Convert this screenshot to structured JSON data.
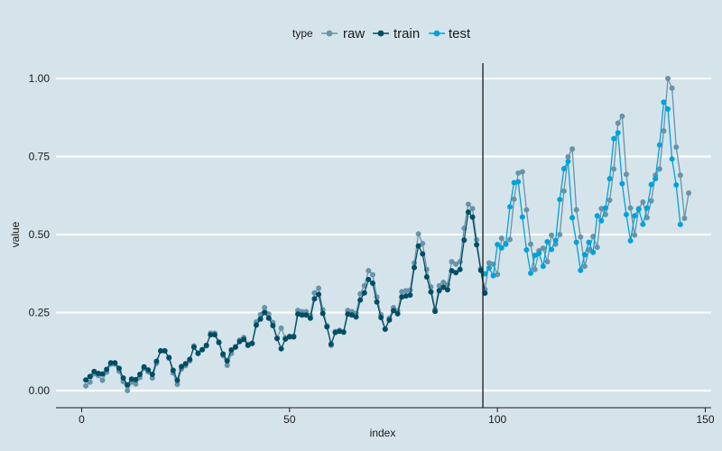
{
  "colors": {
    "background": "#d5e4eb",
    "grid": "#ffffff",
    "axis": "#1a1a1a",
    "raw": "#6794a7",
    "train": "#014d64",
    "test": "#01a2d9"
  },
  "chart_data": {
    "type": "line",
    "xlabel": "index",
    "ylabel": "value",
    "xlim": [
      1,
      144
    ],
    "ylim": [
      0,
      1
    ],
    "x_ticks": [
      0,
      50,
      100,
      150
    ],
    "x_tick_labels": [
      "0",
      "50",
      "100",
      "150"
    ],
    "y_ticks": [
      0,
      0.25,
      0.5,
      0.75,
      1
    ],
    "y_tick_labels": [
      "0.00",
      "0.25",
      "0.50",
      "0.75",
      "1.00"
    ],
    "split_index": 96.5,
    "legend": {
      "title": "type",
      "position": "top",
      "entries": [
        "raw",
        "train",
        "test"
      ]
    },
    "raw_values": [
      0.015,
      0.027,
      0.054,
      0.048,
      0.033,
      0.059,
      0.085,
      0.085,
      0.062,
      0.029,
      0.0,
      0.027,
      0.021,
      0.042,
      0.071,
      0.06,
      0.04,
      0.087,
      0.128,
      0.128,
      0.104,
      0.056,
      0.02,
      0.069,
      0.08,
      0.095,
      0.143,
      0.118,
      0.131,
      0.143,
      0.184,
      0.184,
      0.156,
      0.112,
      0.081,
      0.119,
      0.141,
      0.162,
      0.17,
      0.149,
      0.151,
      0.22,
      0.243,
      0.266,
      0.245,
      0.218,
      0.168,
      0.2,
      0.169,
      0.174,
      0.174,
      0.257,
      0.253,
      0.253,
      0.241,
      0.313,
      0.328,
      0.259,
      0.208,
      0.145,
      0.189,
      0.193,
      0.188,
      0.257,
      0.253,
      0.247,
      0.31,
      0.336,
      0.384,
      0.371,
      0.3,
      0.243,
      0.197,
      0.232,
      0.266,
      0.255,
      0.317,
      0.32,
      0.322,
      0.409,
      0.502,
      0.471,
      0.388,
      0.332,
      0.259,
      0.336,
      0.347,
      0.34,
      0.413,
      0.405,
      0.413,
      0.52,
      0.597,
      0.583,
      0.483,
      0.39,
      0.324,
      0.409,
      0.405,
      0.372,
      0.488,
      0.471,
      0.484,
      0.613,
      0.697,
      0.701,
      0.579,
      0.469,
      0.388,
      0.448,
      0.456,
      0.413,
      0.498,
      0.469,
      0.5,
      0.639,
      0.749,
      0.774,
      0.579,
      0.492,
      0.398,
      0.45,
      0.494,
      0.459,
      0.583,
      0.564,
      0.61,
      0.71,
      0.857,
      0.879,
      0.693,
      0.585,
      0.498,
      0.583,
      0.604,
      0.554,
      0.608,
      0.69,
      0.71,
      0.832,
      1.0,
      0.969,
      0.78,
      0.69,
      0.552,
      0.633
    ],
    "train_values": [
      0.034,
      0.045,
      0.061,
      0.055,
      0.053,
      0.068,
      0.089,
      0.089,
      0.071,
      0.04,
      0.018,
      0.037,
      0.035,
      0.052,
      0.076,
      0.066,
      0.052,
      0.094,
      0.127,
      0.127,
      0.106,
      0.065,
      0.033,
      0.077,
      0.086,
      0.1,
      0.139,
      0.12,
      0.131,
      0.145,
      0.179,
      0.179,
      0.154,
      0.117,
      0.095,
      0.13,
      0.139,
      0.157,
      0.164,
      0.145,
      0.151,
      0.21,
      0.229,
      0.25,
      0.232,
      0.208,
      0.167,
      0.134,
      0.165,
      0.172,
      0.172,
      0.245,
      0.242,
      0.242,
      0.232,
      0.294,
      0.308,
      0.247,
      0.204,
      0.149,
      0.186,
      0.19,
      0.187,
      0.245,
      0.242,
      0.236,
      0.29,
      0.313,
      0.356,
      0.344,
      0.284,
      0.234,
      0.197,
      0.226,
      0.256,
      0.246,
      0.3,
      0.303,
      0.306,
      0.394,
      0.463,
      0.438,
      0.364,
      0.316,
      0.254,
      0.32,
      0.331,
      0.323,
      0.384,
      0.378,
      0.388,
      0.482,
      0.572,
      0.556,
      0.467,
      0.385,
      0.312
    ],
    "test_values": [
      0.374,
      0.393,
      0.368,
      0.468,
      0.457,
      0.469,
      0.589,
      0.666,
      0.669,
      0.556,
      0.451,
      0.376,
      0.433,
      0.44,
      0.398,
      0.477,
      0.452,
      0.481,
      0.612,
      0.711,
      0.734,
      0.554,
      0.475,
      0.385,
      0.435,
      0.475,
      0.443,
      0.56,
      0.544,
      0.585,
      0.679,
      0.807,
      0.826,
      0.663,
      0.564,
      0.48,
      0.56,
      0.581,
      0.533,
      0.585,
      0.66,
      0.679,
      0.787,
      0.924,
      0.902,
      0.742,
      0.659,
      0.532
    ]
  }
}
